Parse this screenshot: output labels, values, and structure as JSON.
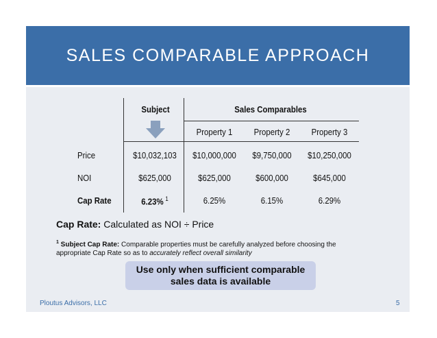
{
  "slide": {
    "title": "SALES COMPARABLE APPROACH",
    "colors": {
      "banner": "#3b6ea8",
      "panel": "#eaedf2",
      "callout": "#c9d0e8",
      "footer_text": "#3b6ea8"
    }
  },
  "table": {
    "subject_header": "Subject",
    "comparables_header": "Sales Comparables",
    "property_headers": [
      "Property 1",
      "Property 2",
      "Property 3"
    ],
    "arrow_icon": "down-arrow-icon",
    "rows": [
      {
        "label": "Price",
        "subject": "$10,032,103",
        "values": [
          "$10,000,000",
          "$9,750,000",
          "$10,250,000"
        ]
      },
      {
        "label": "NOI",
        "subject": "$625,000",
        "values": [
          "$625,000",
          "$600,000",
          "$645,000"
        ]
      },
      {
        "label": "Cap Rate",
        "subject": "6.23%",
        "subject_footnote": "1",
        "values": [
          "6.25%",
          "6.15%",
          "6.29%"
        ]
      }
    ]
  },
  "definition": {
    "term": "Cap Rate:",
    "text": " Calculated as NOI ÷ Price"
  },
  "footnote": {
    "marker": "1",
    "term": " Subject Cap Rate:",
    "text": " Comparable properties must be carefully analyzed before choosing the appropriate Cap Rate so as to ",
    "emphasis": "accurately reflect overall similarity"
  },
  "callout": {
    "line1": "Use only when sufficient comparable",
    "line2": "sales data is available"
  },
  "footer": {
    "company": "Ploutus Advisors, LLC",
    "page_number": "5"
  }
}
